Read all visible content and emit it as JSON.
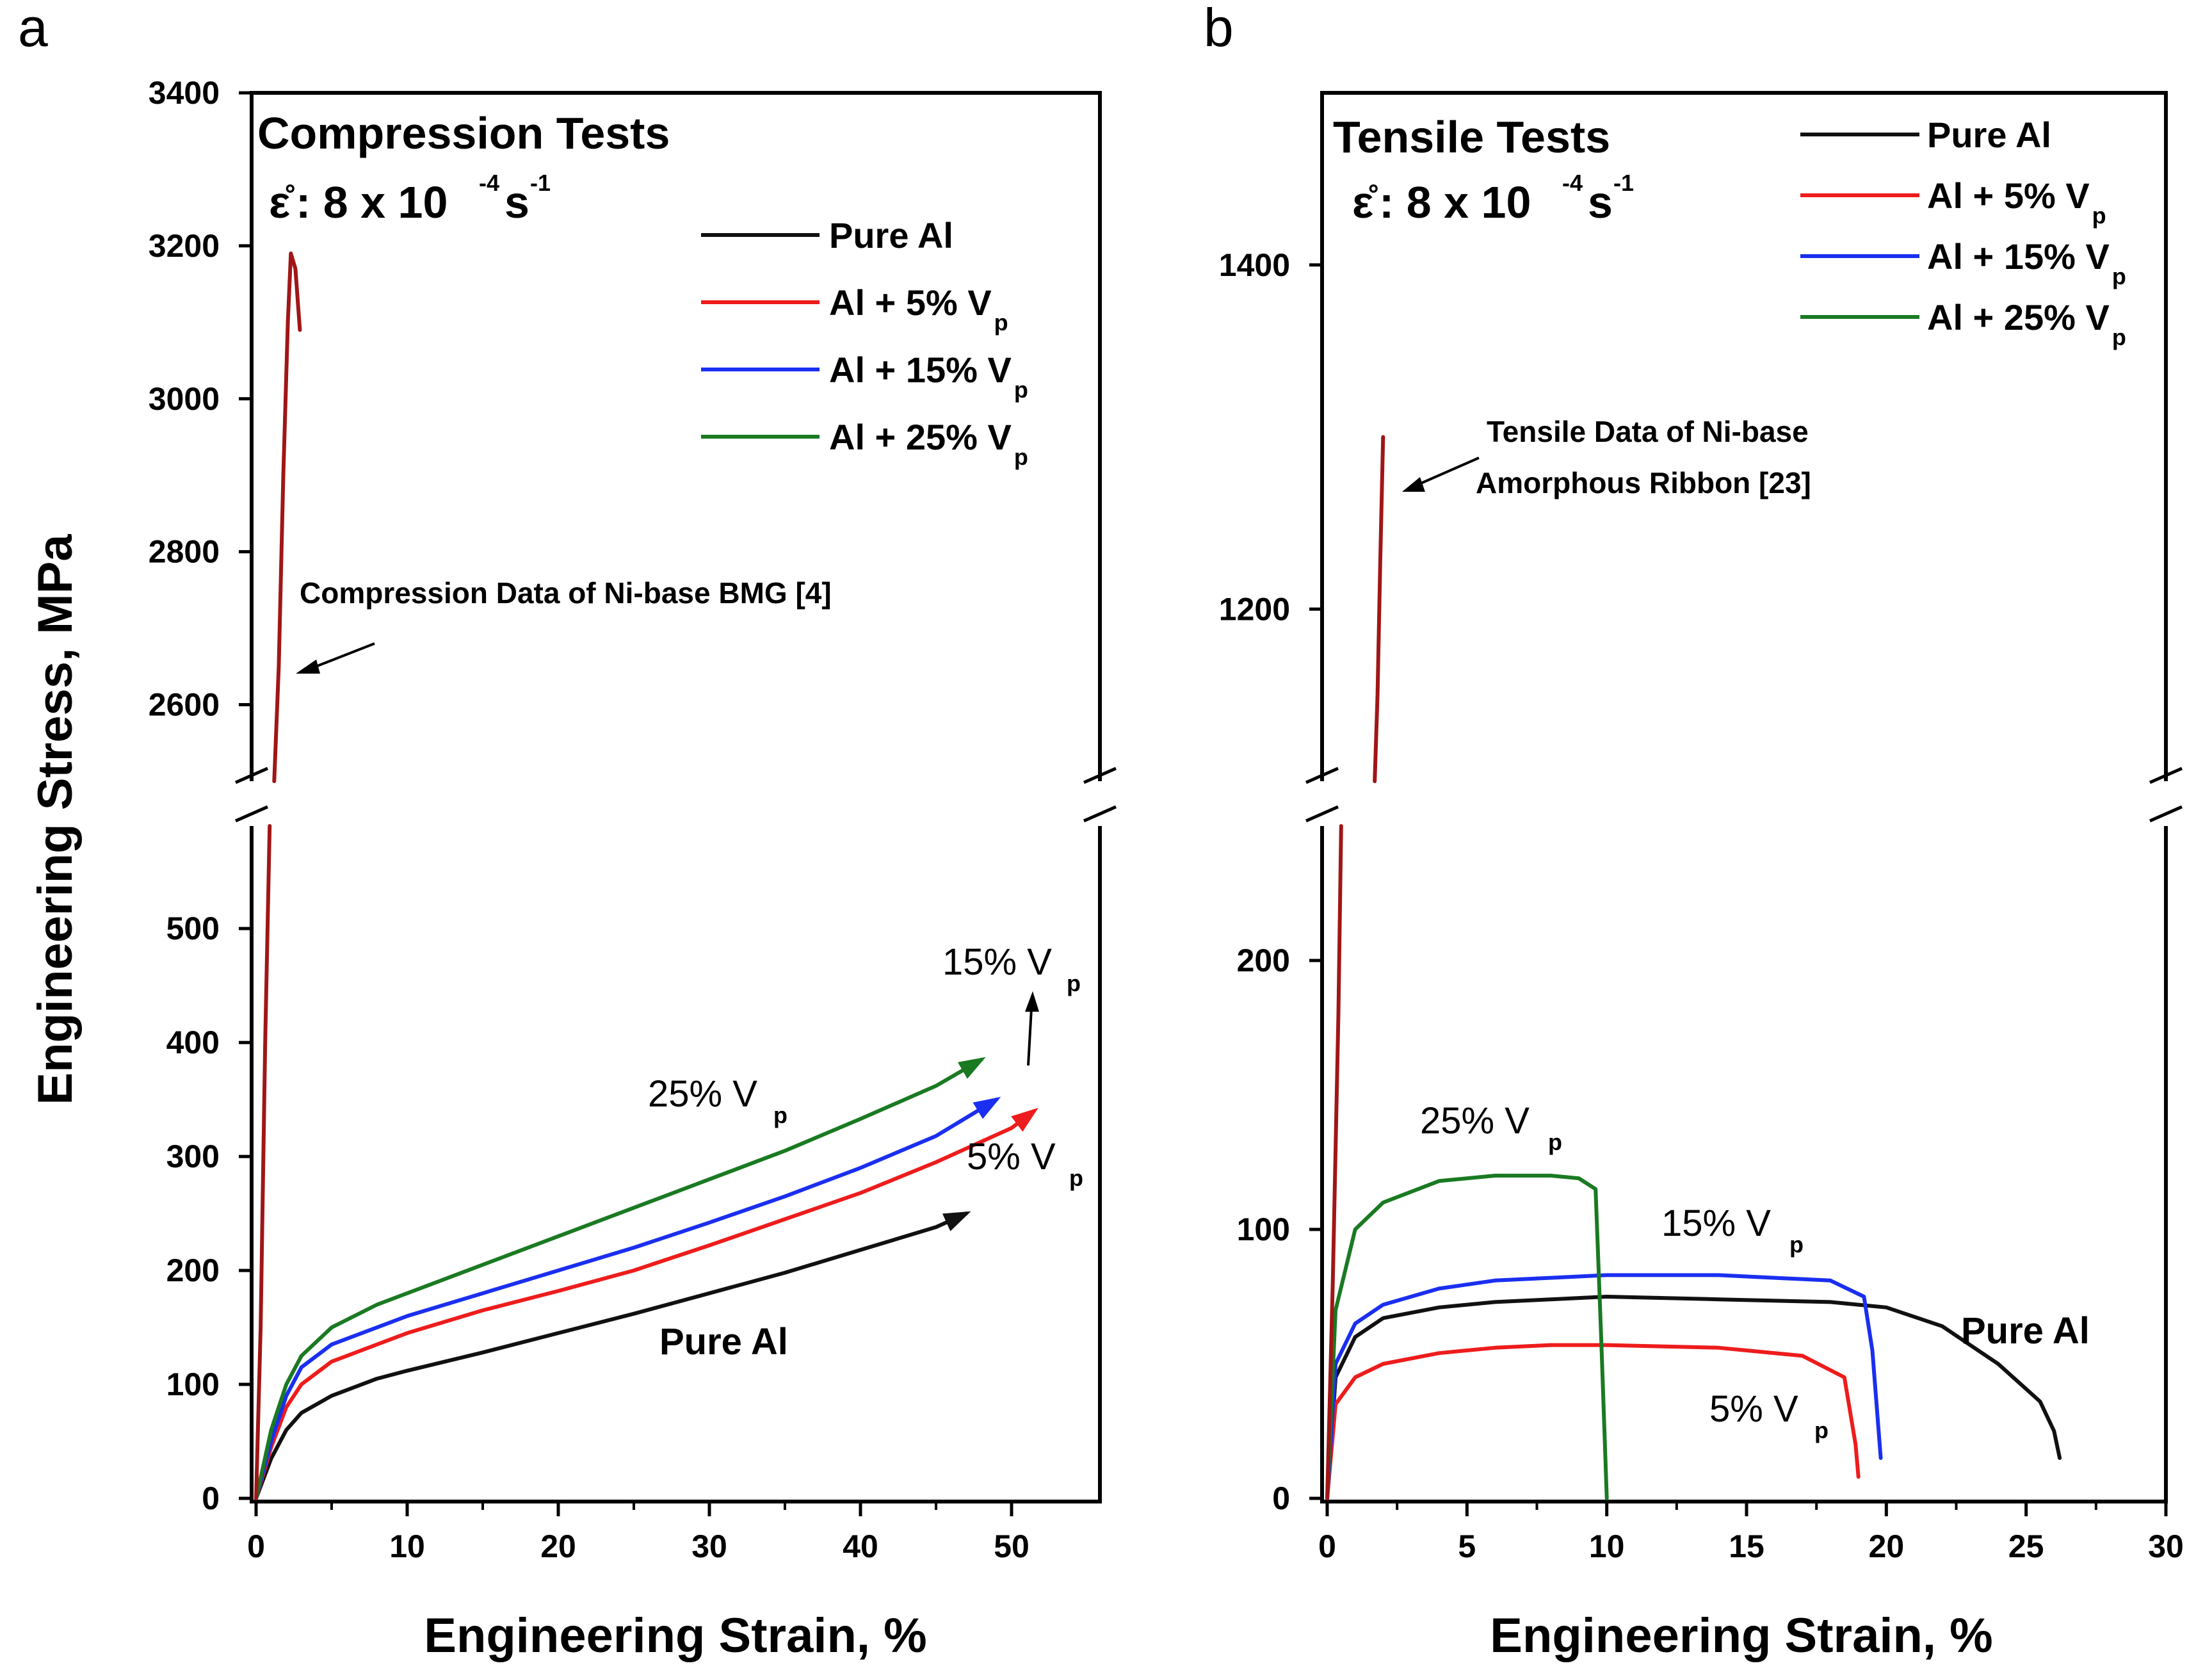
{
  "colors": {
    "pure_al": "#111111",
    "al_5": "#ee1c1c",
    "al_15": "#1a2ff0",
    "al_25": "#1a7a22",
    "bmg": "#a01616"
  },
  "panel_a": {
    "letter": "a",
    "title": "Compression Tests",
    "rate_symbol": "ε̊",
    "rate_text": ": 8 x 10",
    "rate_exp": "-4",
    "rate_unit": "s",
    "rate_unit_exp": "-1",
    "annotation": "Compression Data of Ni-base BMG [4]",
    "curve_labels": {
      "v15": "15% V",
      "v15_sub": "p",
      "v25": "25% V",
      "v25_sub": "p",
      "v5": "5% V",
      "v5_sub": "p",
      "pure": "Pure Al"
    }
  },
  "panel_b": {
    "letter": "b",
    "title": "Tensile Tests",
    "rate_symbol": "ε̊",
    "rate_text": ": 8 x 10",
    "rate_exp": "-4",
    "rate_unit": "s",
    "rate_unit_exp": "-1",
    "annotation_line1": "Tensile Data of Ni-base",
    "annotation_line2": "Amorphous Ribbon [23]",
    "curve_labels": {
      "v25": "25% V",
      "v25_sub": "p",
      "v15": "15% V",
      "v15_sub": "p",
      "v5": "5% V",
      "v5_sub": "p",
      "pure": "Pure Al"
    }
  },
  "legend": [
    {
      "label": "Pure Al",
      "sub": ""
    },
    {
      "label": "Al + 5% V",
      "sub": "p"
    },
    {
      "label": "Al + 15% V",
      "sub": "p"
    },
    {
      "label": "Al + 25% V",
      "sub": "p"
    }
  ],
  "chart_data": [
    {
      "type": "line",
      "title": "Compression Tests",
      "xlabel": "Engineering Strain, %",
      "ylabel": "Engineering Stress, MPa",
      "xlim": [
        0,
        55
      ],
      "ylim_lower": [
        0,
        590
      ],
      "ylim_upper": [
        2500,
        3400
      ],
      "axis_break": true,
      "x_ticks": [
        0,
        10,
        20,
        30,
        40,
        50
      ],
      "y_ticks_lower": [
        0,
        100,
        200,
        300,
        400,
        500
      ],
      "y_ticks_upper": [
        2600,
        2800,
        3000,
        3200,
        3400
      ],
      "series": [
        {
          "name": "Pure Al",
          "x": [
            0,
            1,
            2,
            3,
            5,
            8,
            10,
            15,
            20,
            25,
            30,
            35,
            40,
            45,
            47
          ],
          "y": [
            0,
            35,
            60,
            75,
            90,
            105,
            112,
            128,
            145,
            162,
            180,
            198,
            218,
            238,
            250
          ]
        },
        {
          "name": "Al + 5% Vp",
          "x": [
            0,
            1,
            2,
            3,
            5,
            8,
            10,
            15,
            20,
            25,
            30,
            35,
            40,
            45,
            50,
            51.5
          ],
          "y": [
            0,
            45,
            80,
            100,
            120,
            135,
            145,
            165,
            182,
            200,
            222,
            245,
            268,
            295,
            325,
            340
          ]
        },
        {
          "name": "Al + 15% Vp",
          "x": [
            0,
            1,
            2,
            3,
            5,
            8,
            10,
            15,
            20,
            25,
            30,
            35,
            40,
            45,
            49
          ],
          "y": [
            0,
            50,
            90,
            115,
            135,
            150,
            160,
            180,
            200,
            220,
            242,
            265,
            290,
            318,
            350
          ]
        },
        {
          "name": "Al + 25% Vp",
          "x": [
            0,
            1,
            2,
            3,
            5,
            8,
            10,
            15,
            20,
            25,
            30,
            35,
            40,
            45,
            48
          ],
          "y": [
            0,
            60,
            100,
            125,
            150,
            170,
            180,
            205,
            230,
            255,
            280,
            305,
            333,
            362,
            385
          ]
        },
        {
          "name": "Ni-base BMG",
          "x": [
            0,
            0.3,
            0.6,
            0.9,
            1.2,
            1.5,
            1.8,
            2.1,
            2.3,
            2.6,
            2.9
          ],
          "y": [
            0,
            150,
            400,
            590,
            2500,
            2650,
            2900,
            3100,
            3190,
            3170,
            3090
          ]
        }
      ]
    },
    {
      "type": "line",
      "title": "Tensile Tests",
      "xlabel": "Engineering Strain, %",
      "ylabel": "",
      "xlim": [
        0,
        30
      ],
      "ylim_lower": [
        0,
        250
      ],
      "ylim_upper": [
        1100,
        1500
      ],
      "axis_break": true,
      "x_ticks": [
        0,
        5,
        10,
        15,
        20,
        25,
        30
      ],
      "y_ticks_lower": [
        0,
        100,
        200
      ],
      "y_ticks_upper": [
        1200,
        1400
      ],
      "series": [
        {
          "name": "Pure Al",
          "x": [
            0,
            0.3,
            1,
            2,
            4,
            6,
            8,
            10,
            14,
            18,
            20,
            22,
            24,
            25.5,
            26,
            26.2
          ],
          "y": [
            0,
            45,
            60,
            67,
            71,
            73,
            74,
            75,
            74,
            73,
            71,
            64,
            50,
            36,
            25,
            15
          ]
        },
        {
          "name": "Al + 5% Vp",
          "x": [
            0,
            0.3,
            1,
            2,
            4,
            6,
            8,
            10,
            14,
            17,
            18.5,
            18.9,
            19
          ],
          "y": [
            0,
            35,
            45,
            50,
            54,
            56,
            57,
            57,
            56,
            53,
            45,
            20,
            8
          ]
        },
        {
          "name": "Al + 15% Vp",
          "x": [
            0,
            0.3,
            1,
            2,
            4,
            6,
            8,
            10,
            14,
            18,
            19.2,
            19.5,
            19.8
          ],
          "y": [
            0,
            50,
            65,
            72,
            78,
            81,
            82,
            83,
            83,
            81,
            75,
            55,
            15
          ]
        },
        {
          "name": "Al + 25% Vp",
          "x": [
            0,
            0.3,
            1,
            2,
            4,
            6,
            8,
            9,
            9.6,
            9.8,
            10
          ],
          "y": [
            0,
            70,
            100,
            110,
            118,
            120,
            120,
            119,
            115,
            60,
            0
          ]
        },
        {
          "name": "Ni-base amorphous ribbon",
          "x": [
            0,
            0.2,
            0.4,
            0.5,
            1.7,
            1.8,
            1.9,
            2.0
          ],
          "y": [
            0,
            80,
            180,
            250,
            1100,
            1150,
            1230,
            1300
          ]
        }
      ]
    }
  ]
}
